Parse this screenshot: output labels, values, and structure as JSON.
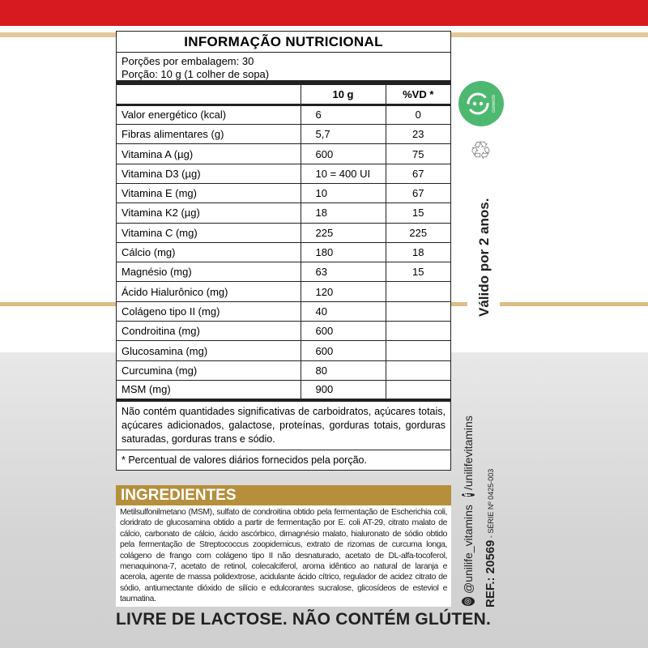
{
  "title": "INFORMAÇÃO NUTRICIONAL",
  "portions": "Porções por embalagem: 30",
  "portion": "Porção: 10 g (1 colher de sopa)",
  "headers": [
    "",
    "10 g",
    "%VD *"
  ],
  "rows": [
    [
      "Valor energético (kcal)",
      "6",
      "0"
    ],
    [
      "Fibras alimentares (g)",
      "5,7",
      "23"
    ],
    [
      "Vitamina A (µg)",
      "600",
      "75"
    ],
    [
      "Vitamina D3 (µg)",
      "10 = 400 UI",
      "67"
    ],
    [
      "Vitamina E (mg)",
      "10",
      "67"
    ],
    [
      "Vitamina K2 (µg)",
      "18",
      "15"
    ],
    [
      "Vitamina C (mg)",
      "225",
      "225"
    ],
    [
      "Cálcio (mg)",
      "180",
      "18"
    ],
    [
      "Magnésio (mg)",
      "63",
      "15"
    ],
    [
      "Ácido Hialurônico (mg)",
      "120",
      ""
    ],
    [
      "Colágeno tipo II (mg)",
      "40",
      ""
    ],
    [
      "Condroitina (mg)",
      "600",
      ""
    ],
    [
      "Glucosamina (mg)",
      "600",
      ""
    ],
    [
      "Curcumina (mg)",
      "80",
      ""
    ],
    [
      "MSM (mg)",
      "900",
      ""
    ]
  ],
  "note": "Não contém quantidades significativas de carboidratos, açúcares totais, açúcares adicionados, galactose, proteínas, gorduras totais, gorduras saturadas, gorduras trans e sódio.",
  "footnote": "* Percentual de valores diários fornecidos pela porção.",
  "ingredients_title": "INGREDIENTES",
  "ingredients": "Metilsulfonilmetano (MSM), sulfato de condroitina obtido pela fermentação de Escherichia coli, cloridrato de glucosamina obtido a partir de fermentação por E. coli AT-29, citrato malato de cálcio, carbonato de cálcio, ácido ascórbico, dimagnésio malato, hialuronato de sódio obtido pela fermentação de Streptococcus zoopidemicus, extrato de rizomas de curcuma longa, colágeno de frango com colágeno tipo II não desnaturado, acetato de DL-alfa-tocoferol, menaquinona-7, acetato de retinol, colecalciferol, aroma idêntico ao natural de laranja e acerola, agente de massa polidextrose, acidulante ácido cítrico, regulador de acidez citrato de sódio, antiumectante dióxido de silício e edulcorantes sucralose, glicosídeos de esteviol e taumatina.",
  "bottom": "LIVRE DE LACTOSE. NÃO CONTÉM GLÚTEN.",
  "validity": "Válido por 2 anos.",
  "seal": "cuneiclo",
  "instagram": "@unilife_vitamins",
  "facebook": "/unilifevitamins",
  "ref": "REF.: 20569",
  "serie": " - SÉRIE Nº 0425-003",
  "colors": {
    "red": "#d71920",
    "gold": "#b68f3c",
    "green": "#4db870"
  }
}
